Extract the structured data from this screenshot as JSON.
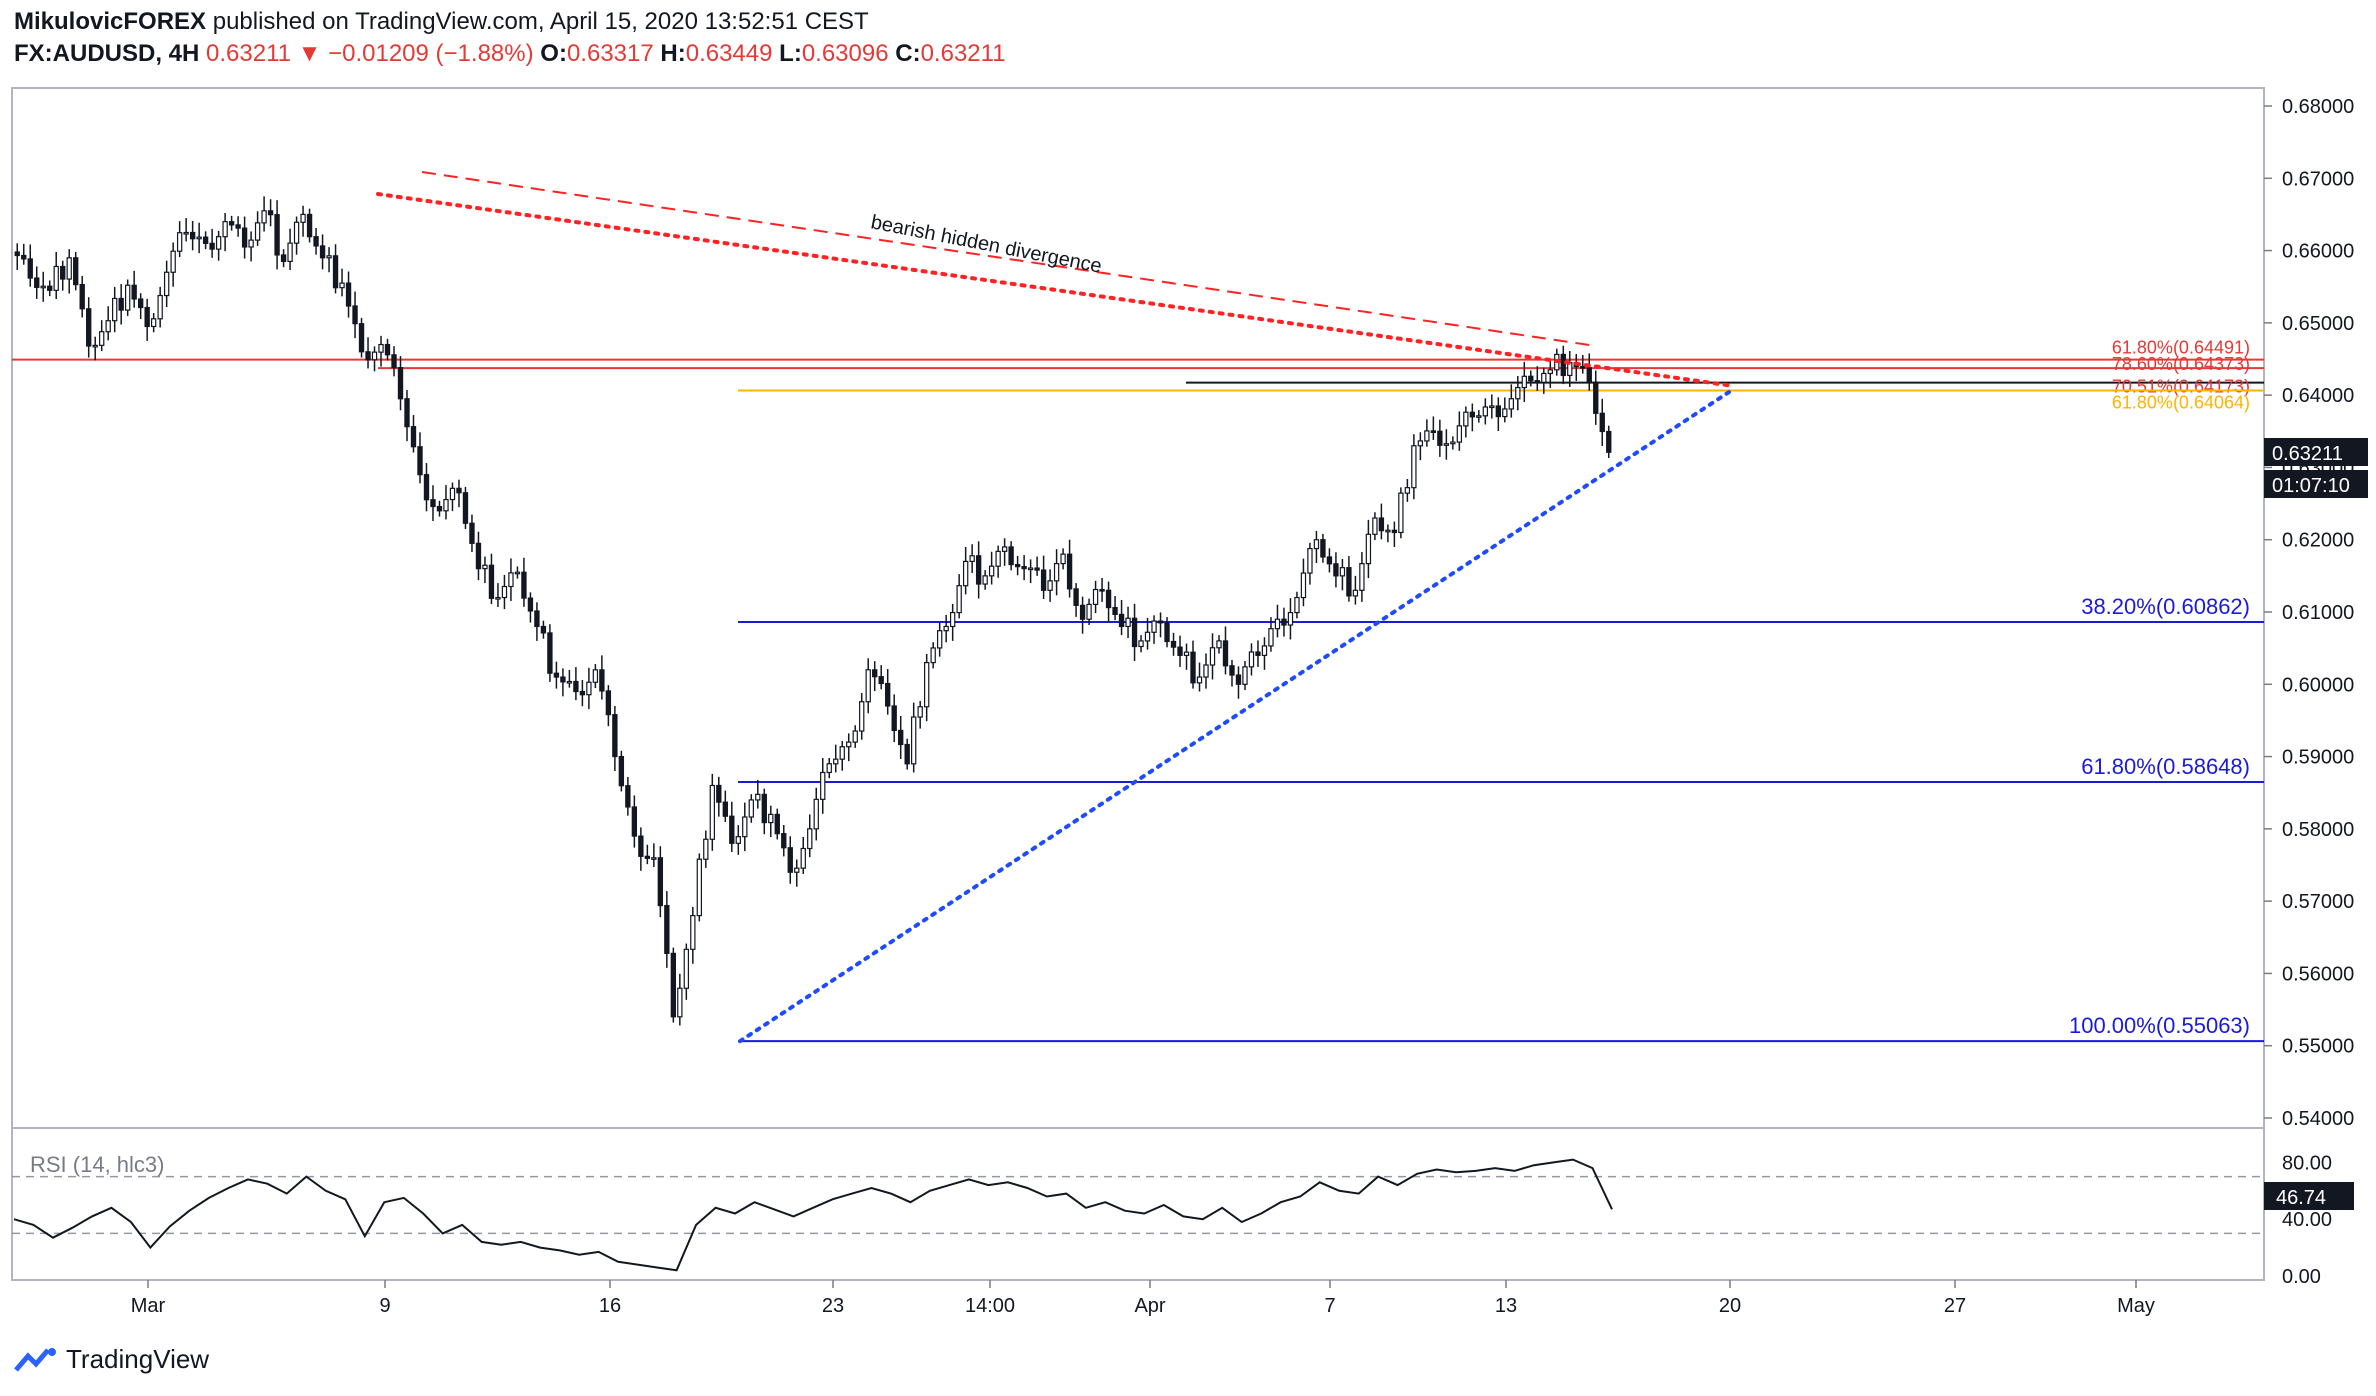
{
  "header": {
    "author": "MikulovicFOREX",
    "published_text": "published on TradingView.com, April 15, 2020 13:52:51 CEST",
    "symbol": "FX:AUDUSD, 4H",
    "last": "0.63211",
    "change": "−0.01209 (−1.88%)",
    "o_label": "O:",
    "o_value": "0.63317",
    "h_label": "H:",
    "h_value": "0.63449",
    "l_label": "L:",
    "l_value": "0.63096",
    "c_label": "C:",
    "c_value": "0.63211"
  },
  "footer": {
    "brand": "TradingView"
  },
  "colors": {
    "fib_blue": "#1a1adb",
    "fib_red": "#e53935",
    "fib_orange": "#ffb300",
    "trend_red": "#ff2222",
    "trend_blue": "#1e4bff",
    "price_tag_bg": "#131722"
  },
  "chart_data": [
    {
      "type": "candlestick",
      "title": "FX:AUDUSD, 4H",
      "y_axis": {
        "ticks": [
          "0.68000",
          "0.67000",
          "0.66000",
          "0.65000",
          "0.64000",
          "0.63000",
          "0.62000",
          "0.61000",
          "0.60000",
          "0.59000",
          "0.58000",
          "0.57000",
          "0.56000",
          "0.55000",
          "0.54000"
        ],
        "range": [
          0.54,
          0.68
        ]
      },
      "x_axis": {
        "ticks": [
          "Mar",
          "9",
          "16",
          "23",
          "14:00",
          "Apr",
          "7",
          "13",
          "20",
          "27",
          "May"
        ]
      },
      "last_price_tag": "0.63211",
      "countdown_tag": "01:07:10",
      "price_path": [
        0.6598,
        0.6562,
        0.6545,
        0.659,
        0.6468,
        0.6503,
        0.6552,
        0.6495,
        0.657,
        0.6625,
        0.661,
        0.664,
        0.6605,
        0.6655,
        0.6585,
        0.665,
        0.659,
        0.6555,
        0.646,
        0.647,
        0.6395,
        0.629,
        0.624,
        0.6265,
        0.616,
        0.612,
        0.6155,
        0.608,
        0.601,
        0.599,
        0.602,
        0.59,
        0.579,
        0.576,
        0.554,
        0.568,
        0.586,
        0.578,
        0.584,
        0.582,
        0.574,
        0.58,
        0.589,
        0.592,
        0.602,
        0.597,
        0.589,
        0.603,
        0.608,
        0.617,
        0.615,
        0.619,
        0.616,
        0.613,
        0.618,
        0.609,
        0.613,
        0.608,
        0.606,
        0.6085,
        0.604,
        0.601,
        0.606,
        0.6,
        0.604,
        0.609,
        0.612,
        0.62,
        0.615,
        0.613,
        0.623,
        0.621,
        0.633,
        0.635,
        0.6335,
        0.637,
        0.6385,
        0.6395,
        0.642,
        0.6435,
        0.6445,
        0.6418,
        0.6321
      ],
      "annotations": [
        {
          "text": "bearish hidden divergence"
        },
        {
          "text": "38.20%(0.60862)",
          "price": 0.60862
        },
        {
          "text": "61.80%(0.58648)",
          "price": 0.58648
        },
        {
          "text": "100.00%(0.55063)",
          "price": 0.55063
        },
        {
          "text": "61.80%(0.64491)",
          "price": 0.64491
        },
        {
          "text": "78.60%(0.64373)",
          "price": 0.64373
        },
        {
          "text": "70.51%(0.64173)",
          "price": 0.64173
        },
        {
          "text": "61.80%(0.64064)",
          "price": 0.64064
        }
      ],
      "horizontal_levels": [
        0.64491,
        0.64373,
        0.64173,
        0.64064,
        0.60862,
        0.58648,
        0.55063
      ]
    },
    {
      "type": "line",
      "title": "RSI (14, hlc3)",
      "y_axis": {
        "ticks": [
          "80.00",
          "40.00",
          "0.00"
        ],
        "range": [
          0,
          100
        ]
      },
      "bands": [
        70,
        30
      ],
      "last_value_tag": "46.74",
      "values": [
        40,
        36,
        27,
        34,
        42,
        48,
        38,
        20,
        35,
        46,
        55,
        62,
        68,
        65,
        58,
        70,
        60,
        54,
        28,
        52,
        55,
        44,
        30,
        36,
        24,
        22,
        24,
        20,
        18,
        15,
        17,
        10,
        8,
        6,
        4,
        36,
        48,
        44,
        52,
        47,
        42,
        48,
        54,
        58,
        62,
        58,
        52,
        60,
        64,
        68,
        64,
        66,
        62,
        56,
        58,
        48,
        52,
        46,
        44,
        50,
        42,
        40,
        48,
        38,
        44,
        52,
        56,
        66,
        60,
        58,
        70,
        64,
        72,
        75,
        73,
        74,
        76,
        74,
        78,
        80,
        82,
        76,
        47
      ]
    }
  ]
}
